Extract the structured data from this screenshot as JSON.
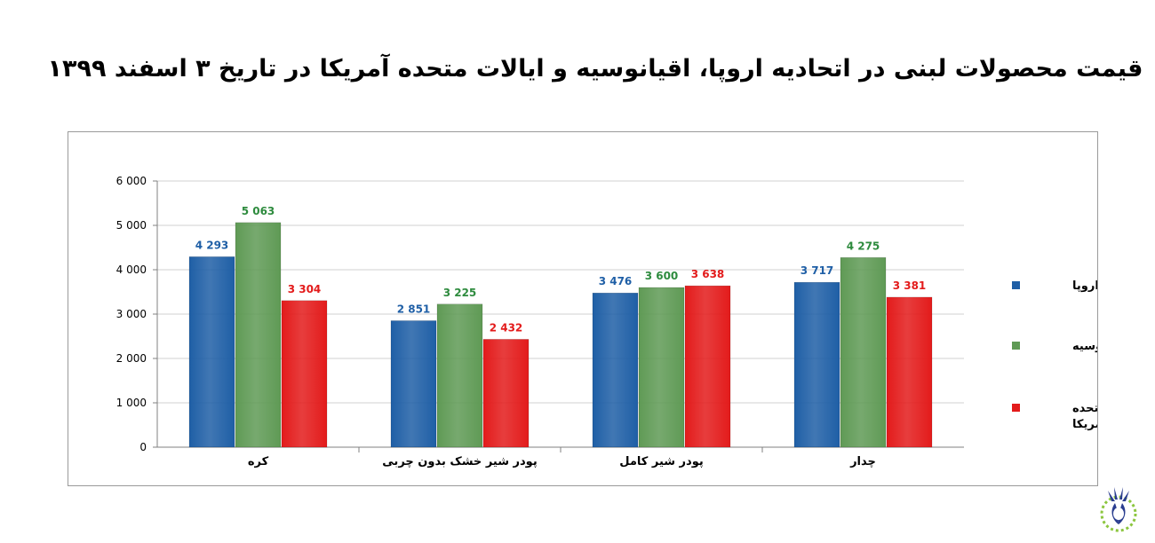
{
  "title": "قیمت محصولات لبنی در اتحادیه اروپا، اقیانوسیه و ایالات متحده آمریکا در تاریخ ۳ اسفند ۱۳۹۹",
  "chart_data": {
    "type": "bar",
    "title": "قیمت محصولات لبنی در اتحادیه اروپا، اقیانوسیه و ایالات متحده آمریکا در تاریخ ۳ اسفند ۱۳۹۹",
    "categories": [
      "کره",
      "پودر شیر خشک بدون چربی",
      "پودر شیر کامل",
      "چدار"
    ],
    "series": [
      {
        "name": "اتحادیه اروپا",
        "values": [
          4293,
          2851,
          3476,
          3717
        ],
        "labels": [
          "4 293",
          "2 851",
          "3 476",
          "3 717"
        ],
        "color": "#1f5fa6"
      },
      {
        "name": "اقیانوسیه",
        "values": [
          5063,
          3225,
          3600,
          4275
        ],
        "labels": [
          "5 063",
          "3 225",
          "3 600",
          "4 275"
        ],
        "color": "#5f9a55"
      },
      {
        "name": "ایالات متحده آمریکا",
        "legend_lines": [
          "ایالات متحده",
          "آمریکا"
        ],
        "values": [
          3304,
          2432,
          3638,
          3381
        ],
        "labels": [
          "3 304",
          "2 432",
          "3 638",
          "3 381"
        ],
        "color": "#e31b1b"
      }
    ],
    "label_colors": [
      "#1f5fa6",
      "#2e8b3e",
      "#e31b1b"
    ],
    "ylim": [
      0,
      6000
    ],
    "yticks": [
      0,
      1000,
      2000,
      3000,
      4000,
      5000,
      6000
    ],
    "ytick_labels": [
      "0",
      "1 000",
      "2 000",
      "3 000",
      "4 000",
      "5 000",
      "6 000"
    ],
    "grid": true,
    "legend_position": "right"
  }
}
